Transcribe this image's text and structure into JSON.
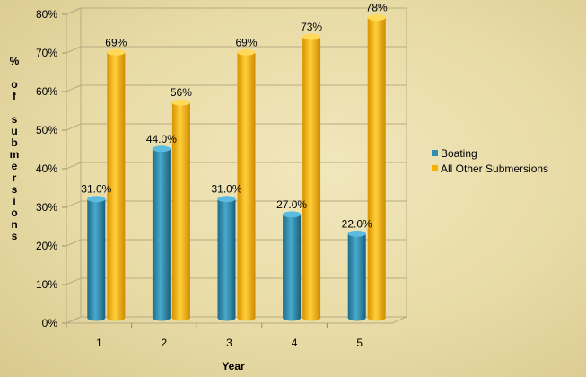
{
  "chart_data": {
    "type": "bar",
    "categories": [
      "1",
      "2",
      "3",
      "4",
      "5"
    ],
    "series": [
      {
        "name": "Boating",
        "values": [
          31.0,
          44.0,
          31.0,
          27.0,
          22.0
        ],
        "labels": [
          "31.0%",
          "44.0%",
          "31.0%",
          "27.0%",
          "22.0%"
        ],
        "color": "#2f8fb3"
      },
      {
        "name": "All Other Submersions",
        "values": [
          69,
          56,
          69,
          73,
          78
        ],
        "labels": [
          "69%",
          "56%",
          "69%",
          "73%",
          "78%"
        ],
        "color": "#f5b300"
      }
    ],
    "title": "",
    "xlabel": "Year",
    "ylabel": "% of submersions",
    "yticks": [
      "0%",
      "10%",
      "20%",
      "30%",
      "40%",
      "50%",
      "60%",
      "70%",
      "80%"
    ],
    "ylim": [
      0,
      80
    ],
    "grid": true,
    "legend": "right",
    "style": "3d-cylinder"
  }
}
